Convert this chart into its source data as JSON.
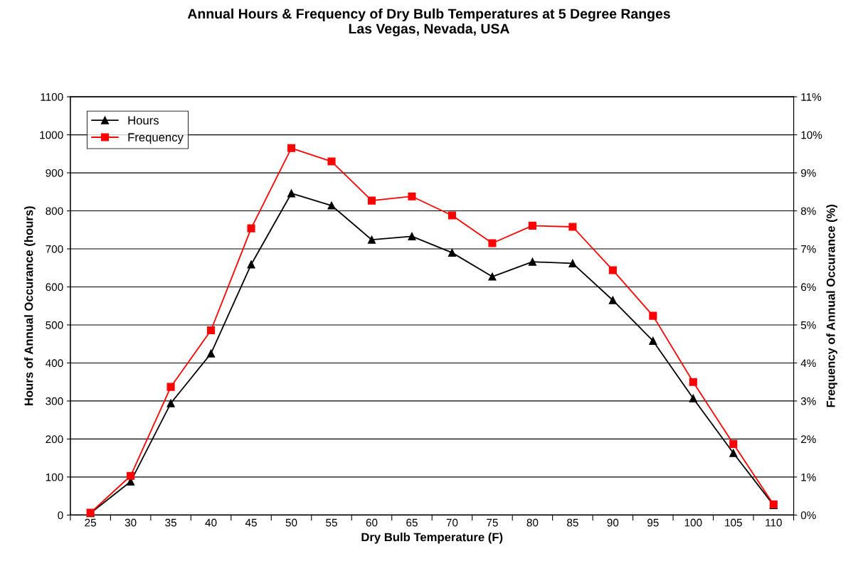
{
  "chart_data": {
    "type": "line",
    "title": "Annual Hours & Frequency of Dry Bulb Temperatures at 5 Degree Ranges\nLas Vegas, Nevada, USA",
    "xlabel": "Dry Bulb Temperature (F)",
    "ylabel": "Hours of Annual Occurance (hours)",
    "y2label": "Frequency of Annual Occurance (%)",
    "categories": [
      "25",
      "30",
      "35",
      "40",
      "45",
      "50",
      "55",
      "60",
      "65",
      "70",
      "75",
      "80",
      "85",
      "90",
      "95",
      "100",
      "105",
      "110"
    ],
    "series": [
      {
        "name": "Hours",
        "color": "#000000",
        "marker": "triangle",
        "values": [
          5,
          88,
          294,
          425,
          659,
          846,
          814,
          724,
          733,
          690,
          627,
          666,
          662,
          565,
          458,
          307,
          163,
          26
        ]
      },
      {
        "name": "Frequency",
        "color": "#ff0000",
        "marker": "square",
        "axis": "y2",
        "values": [
          0.06,
          1.03,
          3.37,
          4.86,
          7.54,
          9.65,
          9.3,
          8.27,
          8.38,
          7.88,
          7.15,
          7.61,
          7.58,
          6.44,
          5.24,
          3.5,
          1.87,
          0.28
        ]
      }
    ],
    "ylim": [
      0,
      1100
    ],
    "yticks": [
      0,
      100,
      200,
      300,
      400,
      500,
      600,
      700,
      800,
      900,
      1000,
      1100
    ],
    "y2lim": [
      0,
      11
    ],
    "y2ticks": [
      {
        "value": 0,
        "label": "0%"
      },
      {
        "value": 1,
        "label": "1%"
      },
      {
        "value": 2,
        "label": "2%"
      },
      {
        "value": 3,
        "label": "3%"
      },
      {
        "value": 4,
        "label": "4%"
      },
      {
        "value": 5,
        "label": "5%"
      },
      {
        "value": 6,
        "label": "6%"
      },
      {
        "value": 7,
        "label": "7%"
      },
      {
        "value": 8,
        "label": "8%"
      },
      {
        "value": 9,
        "label": "9%"
      },
      {
        "value": 10,
        "label": "10%"
      },
      {
        "value": 11,
        "label": "11%"
      }
    ],
    "grid": "y",
    "legend": "top left",
    "line_style": "solid"
  }
}
